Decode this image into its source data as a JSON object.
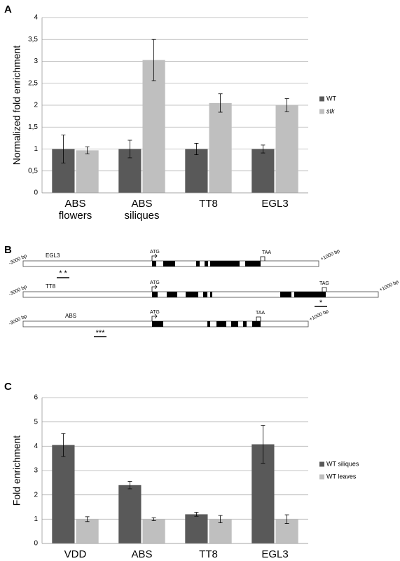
{
  "chart_data": [
    {
      "type": "bar",
      "panel": "A",
      "ylabel": "Normalized fold enrichment",
      "categories": [
        "ABS flowers",
        "ABS siliques",
        "TT8",
        "EGL3"
      ],
      "series": [
        {
          "name": "WT",
          "color": "#595959",
          "values": [
            1,
            1,
            1,
            1
          ],
          "errors": [
            0.32,
            0.2,
            0.13,
            0.09
          ]
        },
        {
          "name": "stk",
          "color": "#bfbfbf",
          "values": [
            0.97,
            3.03,
            2.05,
            2.0
          ],
          "errors": [
            0.08,
            0.47,
            0.21,
            0.15
          ]
        }
      ],
      "ylim": [
        0,
        4
      ],
      "yticks": [
        0,
        {
          "value": 0.5,
          "label": "0,5"
        },
        1,
        {
          "value": 1.5,
          "label": "1,5"
        },
        2,
        {
          "value": 2.5,
          "label": "2,5"
        },
        3,
        {
          "value": 3.5,
          "label": "3,5"
        },
        4
      ],
      "grid": true,
      "legend": "right"
    },
    {
      "type": "bar",
      "panel": "C",
      "ylabel": "Fold enrichment",
      "categories": [
        "VDD",
        "ABS",
        "TT8",
        "EGL3"
      ],
      "series": [
        {
          "name": "WT siliques",
          "color": "#595959",
          "values": [
            4.05,
            2.4,
            1.2,
            4.08
          ],
          "errors": [
            0.47,
            0.15,
            0.08,
            0.78
          ]
        },
        {
          "name": "WT leaves",
          "color": "#bfbfbf",
          "values": [
            1,
            1,
            1,
            1
          ],
          "errors": [
            0.1,
            0.06,
            0.15,
            0.18
          ]
        }
      ],
      "ylim": [
        0,
        6
      ],
      "yticks": [
        0,
        1,
        2,
        3,
        4,
        5,
        6
      ],
      "grid": true,
      "legend": "right"
    }
  ],
  "diagram": {
    "panel": "B",
    "genes": [
      {
        "start": "-3000 bp",
        "name": "EGL3",
        "atg": "ATG",
        "stop": "TAA",
        "end": "+1000 bp",
        "sites": "* *"
      },
      {
        "start": "-3000 bp",
        "name": "TT8",
        "atg": "ATG",
        "stop": "TAG",
        "end": "+1000 bp",
        "sites": "*"
      },
      {
        "start": "-3000 bp",
        "name": "ABS",
        "atg": "ATG",
        "stop": "TAA",
        "end": "+1000 bp",
        "sites": "***"
      }
    ]
  }
}
